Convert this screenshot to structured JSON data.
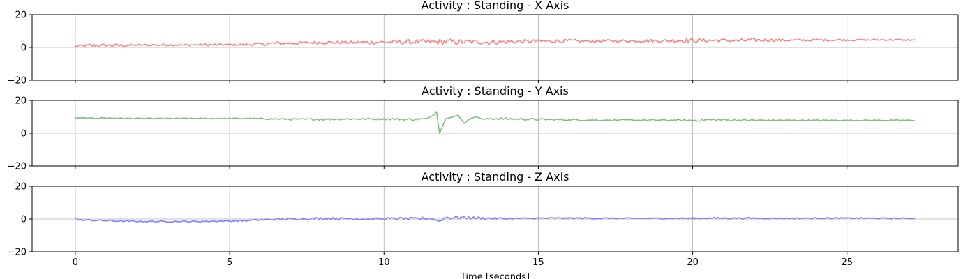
{
  "chart_data": [
    {
      "type": "line",
      "title": "Activity : Standing - X Axis",
      "xlabel": "",
      "ylabel": "",
      "xlim": [
        -1.4,
        28.6
      ],
      "ylim": [
        -20,
        20
      ],
      "yticks": [
        -20,
        0,
        20
      ],
      "xticks": [
        0,
        5,
        10,
        15,
        20,
        25
      ],
      "xtick_labels_visible": false,
      "grid": true,
      "series": [
        {
          "color": "#ff7f7f",
          "x": [
            0,
            0.5,
            1,
            1.5,
            2,
            2.5,
            3,
            3.5,
            4,
            4.5,
            5,
            5.5,
            6,
            6.5,
            7,
            7.5,
            8,
            8.5,
            9,
            9.5,
            10,
            10.5,
            11,
            11.5,
            12,
            12.5,
            13,
            13.5,
            14,
            14.5,
            15,
            15.5,
            16,
            16.5,
            17,
            17.5,
            18,
            18.5,
            19,
            19.5,
            20,
            20.5,
            21,
            21.5,
            22,
            22.5,
            23,
            23.5,
            24,
            24.5,
            25,
            25.5,
            26,
            26.5,
            27,
            27.2
          ],
          "values": [
            0.7,
            1.2,
            1.3,
            1.2,
            1.4,
            1.5,
            1.6,
            1.5,
            1.6,
            1.6,
            1.7,
            1.7,
            2.0,
            2.5,
            2.6,
            2.8,
            3.1,
            3.0,
            3.0,
            3.1,
            3.2,
            3.3,
            3.4,
            3.3,
            3.5,
            3.3,
            3.4,
            3.2,
            3.5,
            3.6,
            3.8,
            3.9,
            3.9,
            3.8,
            3.9,
            4.0,
            4.0,
            4.1,
            4.0,
            4.2,
            4.2,
            4.3,
            4.3,
            4.1,
            4.4,
            4.5,
            4.4,
            4.3,
            4.5,
            4.5,
            4.6,
            4.5,
            4.6,
            4.6,
            4.5,
            4.5
          ],
          "noise": [
            0.6,
            1.2,
            0.9,
            1.0,
            0.6,
            0.8,
            0.7,
            0.6,
            0.7,
            0.8,
            0.6,
            0.7,
            1.0,
            1.2,
            1.0,
            0.9,
            1.1,
            1.0,
            1.0,
            1.2,
            1.3,
            1.4,
            1.5,
            1.6,
            1.7,
            1.6,
            1.5,
            1.4,
            1.3,
            1.2,
            1.1,
            1.0,
            1.2,
            1.0,
            0.9,
            0.8,
            0.9,
            1.0,
            0.9,
            1.2,
            1.3,
            1.2,
            1.0,
            1.1,
            1.3,
            0.9,
            0.8,
            0.7,
            0.6,
            0.6,
            0.6,
            0.5,
            0.5,
            0.5,
            0.4,
            0.4
          ]
        }
      ]
    },
    {
      "type": "line",
      "title": "Activity : Standing - Y Axis",
      "xlabel": "",
      "ylabel": "",
      "xlim": [
        -1.4,
        28.6
      ],
      "ylim": [
        -20,
        20
      ],
      "yticks": [
        -20,
        0,
        20
      ],
      "xticks": [
        0,
        5,
        10,
        15,
        20,
        25
      ],
      "xtick_labels_visible": false,
      "grid": true,
      "series": [
        {
          "color": "#7fbf7f",
          "x": [
            0,
            0.5,
            1,
            1.5,
            2,
            2.5,
            3,
            3.5,
            4,
            4.5,
            5,
            5.5,
            6,
            6.5,
            7,
            7.5,
            8,
            8.5,
            9,
            9.5,
            10,
            10.5,
            11,
            11.4,
            11.6,
            11.7,
            11.8,
            12.0,
            12.2,
            12.4,
            12.6,
            12.8,
            13.0,
            13.2,
            13.5,
            14,
            14.5,
            15,
            15.5,
            16,
            16.5,
            17,
            17.5,
            18,
            18.5,
            19,
            19.5,
            20,
            20.5,
            21,
            21.5,
            22,
            22.5,
            23,
            23.5,
            24,
            24.5,
            25,
            25.5,
            26,
            26.5,
            27,
            27.2
          ],
          "values": [
            9.3,
            9.2,
            9.3,
            9.1,
            9.0,
            9.0,
            9.0,
            9.0,
            9.0,
            9.0,
            9.0,
            9.0,
            8.9,
            8.7,
            8.5,
            8.5,
            8.5,
            8.6,
            8.7,
            8.7,
            8.7,
            8.6,
            8.4,
            9.0,
            11.0,
            13.2,
            0.0,
            8.8,
            9.8,
            11.0,
            6.0,
            9.0,
            10.0,
            8.5,
            9.0,
            8.7,
            8.6,
            8.4,
            8.3,
            8.2,
            8.1,
            8.0,
            8.0,
            8.0,
            8.0,
            8.0,
            8.0,
            7.8,
            8.2,
            8.1,
            8.0,
            7.9,
            7.9,
            7.9,
            7.9,
            7.9,
            7.9,
            7.9,
            7.9,
            7.9,
            7.9,
            7.9,
            7.9
          ],
          "noise": [
            0.3,
            0.3,
            0.4,
            0.3,
            0.3,
            0.3,
            0.3,
            0.3,
            0.3,
            0.3,
            0.3,
            0.3,
            0.4,
            0.5,
            0.5,
            0.5,
            0.6,
            0.5,
            0.5,
            0.6,
            0.5,
            0.6,
            0.7,
            0.0,
            0.0,
            0.0,
            0.0,
            0.0,
            0.0,
            0.0,
            0.0,
            0.0,
            0.0,
            0.0,
            0.8,
            0.7,
            0.6,
            0.6,
            0.5,
            0.5,
            0.5,
            0.4,
            0.4,
            0.4,
            0.4,
            0.4,
            0.4,
            0.6,
            0.9,
            0.6,
            0.5,
            0.6,
            0.4,
            0.4,
            0.3,
            0.3,
            0.3,
            0.3,
            0.3,
            0.3,
            0.3,
            0.3,
            0.3
          ]
        }
      ]
    },
    {
      "type": "line",
      "title": "Activity : Standing - Z Axis",
      "xlabel": "Time [seconds]",
      "ylabel": "",
      "xlim": [
        -1.4,
        28.6
      ],
      "ylim": [
        -20,
        20
      ],
      "yticks": [
        -20,
        0,
        20
      ],
      "xticks": [
        0,
        5,
        10,
        15,
        20,
        25
      ],
      "xtick_labels_visible": true,
      "grid": true,
      "series": [
        {
          "color": "#7f7fff",
          "x": [
            0,
            0.1,
            0.5,
            1,
            1.5,
            2,
            2.5,
            3,
            3.5,
            4,
            4.5,
            5,
            5.5,
            6,
            6.5,
            7,
            7.5,
            8,
            8.5,
            9,
            9.5,
            10,
            10.5,
            11,
            11.5,
            11.8,
            12,
            12.5,
            13,
            13.5,
            14,
            14.5,
            15,
            15.5,
            16,
            16.5,
            17,
            17.5,
            18,
            18.5,
            19,
            19.5,
            20,
            20.5,
            21,
            21.5,
            22,
            22.5,
            23,
            23.5,
            24,
            24.5,
            25,
            25.5,
            26,
            26.5,
            27,
            27.2
          ],
          "values": [
            0.8,
            -0.5,
            -0.7,
            -1.0,
            -1.3,
            -1.4,
            -1.5,
            -1.5,
            -1.5,
            -1.5,
            -1.3,
            -1.2,
            -1.0,
            -0.5,
            -0.2,
            0.0,
            0.2,
            0.4,
            0.3,
            0.2,
            0.0,
            0.2,
            0.3,
            0.2,
            0.5,
            -1.4,
            1.0,
            1.0,
            0.6,
            0.4,
            0.3,
            0.3,
            0.5,
            0.5,
            0.5,
            0.5,
            0.4,
            0.4,
            0.4,
            0.4,
            0.4,
            0.4,
            0.4,
            0.6,
            0.5,
            0.5,
            0.5,
            0.4,
            0.4,
            0.5,
            0.5,
            0.5,
            0.5,
            0.5,
            0.4,
            0.4,
            0.4,
            0.3
          ],
          "noise": [
            0.0,
            0.4,
            0.5,
            0.6,
            0.4,
            0.4,
            0.4,
            0.4,
            0.4,
            0.4,
            0.4,
            0.4,
            0.5,
            0.6,
            0.6,
            0.6,
            0.7,
            0.7,
            0.7,
            0.7,
            0.7,
            0.7,
            0.7,
            0.8,
            1.0,
            0.0,
            1.3,
            0.9,
            0.8,
            0.7,
            0.6,
            0.5,
            0.5,
            0.5,
            0.5,
            0.5,
            0.5,
            0.4,
            0.4,
            0.4,
            0.4,
            0.5,
            0.6,
            0.6,
            0.5,
            0.5,
            0.5,
            0.4,
            0.4,
            0.4,
            0.4,
            0.4,
            0.4,
            0.4,
            0.4,
            0.4,
            0.3,
            0.3
          ]
        }
      ]
    }
  ]
}
